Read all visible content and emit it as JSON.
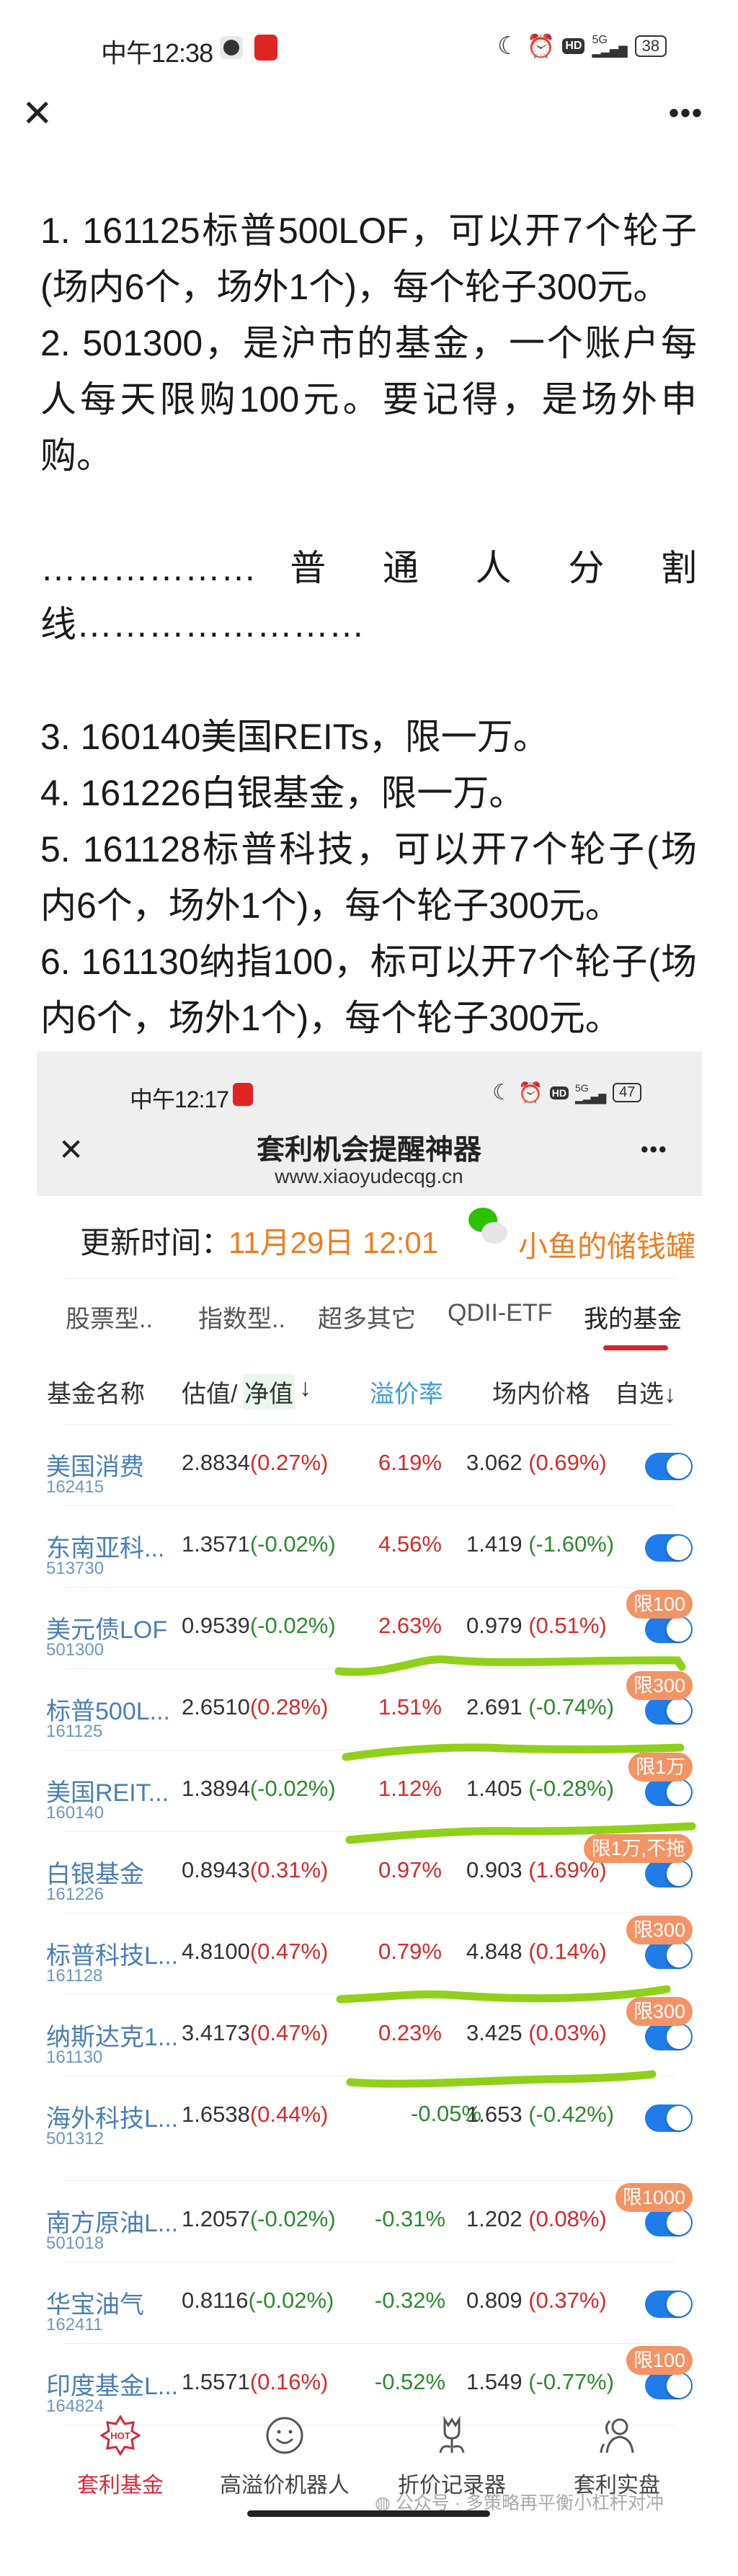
{
  "status_bar": {
    "time": "中午12:38",
    "battery": "38",
    "network": "5G",
    "hd": "HD"
  },
  "nav": {
    "close_icon": "close-icon",
    "more_icon": "more-icon"
  },
  "note": {
    "lines": [
      {
        "text": "1.  161125标普500LOF，可以开7个轮子",
        "full": true
      },
      {
        "text": "(场内6个，场外1个)，每个轮子300元。",
        "full": false
      },
      {
        "text": "2.  501300，是沪市的基金，一个账户每",
        "full": true
      },
      {
        "text": "人每天限购100元。要记得，是场外申",
        "full": true
      },
      {
        "text": "购。",
        "full": false
      },
      {
        "text": "",
        "full": false
      },
      {
        "text": "……………… 普 通 人 分 割",
        "full": true
      },
      {
        "text": "线……………………",
        "full": false
      },
      {
        "text": "",
        "full": false
      },
      {
        "text": "3. 160140美国REITs，限一万。",
        "full": false
      },
      {
        "text": "4. 161226白银基金，限一万。",
        "full": false
      },
      {
        "text": "5. 161128标普科技，可以开7个轮子(场",
        "full": true
      },
      {
        "text": "内6个，场外1个)，每个轮子300元。",
        "full": false
      },
      {
        "text": "6. 161130纳指100，标可以开7个轮子(场",
        "full": true
      },
      {
        "text": "内6个，场外1个)，每个轮子300元。",
        "full": false
      }
    ]
  },
  "screenshot": {
    "status_bar": {
      "time": "中午12:17",
      "battery": "47",
      "network": "5G",
      "hd": "HD"
    },
    "title": "套利机会提醒神器",
    "url": "www.xiaoyudecqg.cn",
    "update_label": "更新时间：",
    "update_time": "11月29日 12:01",
    "brand": "小鱼的储钱罐",
    "tabs": [
      {
        "label": "股票型..",
        "active": false
      },
      {
        "label": "指数型..",
        "active": false
      },
      {
        "label": "超多其它",
        "active": false
      },
      {
        "label": "QDII-ETF",
        "active": false
      },
      {
        "label": "我的基金",
        "active": true
      }
    ],
    "columns": {
      "name": "基金名称",
      "estimate": "估值/",
      "nav": "净值",
      "nav_sort": "↓",
      "premium": "溢价率",
      "price": "场内价格",
      "watch": "自选↓"
    },
    "rows": [
      {
        "name": "美国消费",
        "code": "162415",
        "est": "2.8834",
        "est_chg": "(0.27%)",
        "premium": "6.19%",
        "price": "3.062",
        "price_chg": "(0.69%)",
        "badge": "",
        "watched": true
      },
      {
        "name": "东南亚科...",
        "code": "513730",
        "est": "1.3571",
        "est_chg": "(-0.02%)",
        "premium": "4.56%",
        "price": "1.419",
        "price_chg": "(-1.60%)",
        "badge": "",
        "watched": true
      },
      {
        "name": "美元债LOF",
        "code": "501300",
        "est": "0.9539",
        "est_chg": "(-0.02%)",
        "premium": "2.63%",
        "price": "0.979",
        "price_chg": "(0.51%)",
        "badge": "限100",
        "watched": true
      },
      {
        "name": "标普500L...",
        "code": "161125",
        "est": "2.6510",
        "est_chg": "(0.28%)",
        "premium": "1.51%",
        "price": "2.691",
        "price_chg": "(-0.74%)",
        "badge": "限300",
        "watched": true
      },
      {
        "name": "美国REIT...",
        "code": "160140",
        "est": "1.3894",
        "est_chg": "(-0.02%)",
        "premium": "1.12%",
        "price": "1.405",
        "price_chg": "(-0.28%)",
        "badge": "限1万",
        "watched": true
      },
      {
        "name": "白银基金",
        "code": "161226",
        "est": "0.8943",
        "est_chg": "(0.31%)",
        "premium": "0.97%",
        "price": "0.903",
        "price_chg": "(1.69%)",
        "badge": "限1万,不拖",
        "watched": true
      },
      {
        "name": "标普科技L...",
        "code": "161128",
        "est": "4.8100",
        "est_chg": "(0.47%)",
        "premium": "0.79%",
        "price": "4.848",
        "price_chg": "(0.14%)",
        "badge": "限300",
        "watched": true
      },
      {
        "name": "纳斯达克1...",
        "code": "161130",
        "est": "3.4173",
        "est_chg": "(0.47%)",
        "premium": "0.23%",
        "price": "3.425",
        "price_chg": "(0.03%)",
        "badge": "限300",
        "watched": true
      },
      {
        "name": "海外科技L...",
        "code": "501312",
        "est": "1.6538",
        "est_chg": "(0.44%)",
        "premium": "-0.05%",
        "price": "1.653",
        "price_chg": "(-0.42%)",
        "badge": "",
        "watched": true
      },
      {
        "name": "南方原油L...",
        "code": "501018",
        "est": "1.2057",
        "est_chg": "(-0.02%)",
        "premium": "-0.31%",
        "price": "1.202",
        "price_chg": "(0.08%)",
        "badge": "限1000",
        "watched": true
      },
      {
        "name": "华宝油气",
        "code": "162411",
        "est": "0.8116",
        "est_chg": "(-0.02%)",
        "premium": "-0.32%",
        "price": "0.809",
        "price_chg": "(0.37%)",
        "badge": "",
        "watched": true
      },
      {
        "name": "印度基金L...",
        "code": "164824",
        "est": "1.5571",
        "est_chg": "(0.16%)",
        "premium": "-0.52%",
        "price": "1.549",
        "price_chg": "(-0.77%)",
        "badge": "限100",
        "watched": true
      }
    ],
    "bottom_nav": [
      {
        "label": "套利基金",
        "icon": "hot-icon",
        "active": true
      },
      {
        "label": "高溢价机器人",
        "icon": "smiley-icon",
        "active": false
      },
      {
        "label": "折价记录器",
        "icon": "tulip-icon",
        "active": false
      },
      {
        "label": "套利实盘",
        "icon": "users-icon",
        "active": false
      }
    ],
    "watermark": "公众号 · 多策略再平衡小杠杆对冲"
  },
  "colors": {
    "up": "#d42a2a",
    "down": "#2b8a2e",
    "accent_orange": "#ee7d1f",
    "toggle_blue": "#1f7ce8",
    "badge": "#f29466",
    "tab_underline": "#d8232a",
    "annotation": "#8fd11a"
  }
}
